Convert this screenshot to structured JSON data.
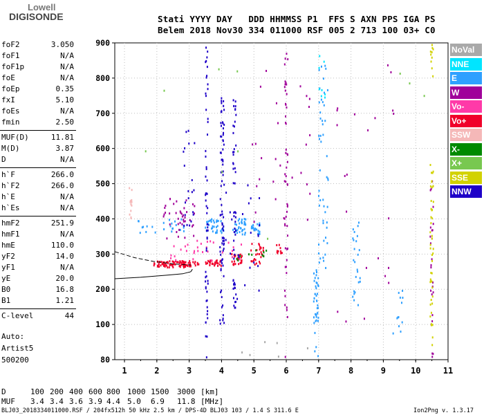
{
  "logo": {
    "line1": "Lowell",
    "line2": "DIGISONDE"
  },
  "header": {
    "line1": "Stati YYYY DAY   DDD HHMMSS P1  FFS S AXN PPS IGA PS",
    "line2": "Belem 2018 Nov30 334 011000 RSF 005 2 713 100 03+ C0"
  },
  "params": [
    {
      "name": "foF2",
      "value": "3.050"
    },
    {
      "name": "foF1",
      "value": "N/A"
    },
    {
      "name": "foF1p",
      "value": "N/A"
    },
    {
      "name": "foE",
      "value": "N/A"
    },
    {
      "name": "foEp",
      "value": "0.35"
    },
    {
      "name": "fxI",
      "value": "5.10"
    },
    {
      "name": "foEs",
      "value": "N/A"
    },
    {
      "name": "fmin",
      "value": "2.50"
    },
    {
      "name": "MUF(D)",
      "value": "11.81"
    },
    {
      "name": "M(D)",
      "value": "3.87"
    },
    {
      "name": "D",
      "value": "N/A"
    },
    {
      "name": "h`F",
      "value": "266.0"
    },
    {
      "name": "h`F2",
      "value": "266.0"
    },
    {
      "name": "h`E",
      "value": "N/A"
    },
    {
      "name": "h`Es",
      "value": "N/A"
    },
    {
      "name": "hmF2",
      "value": "251.9"
    },
    {
      "name": "hmF1",
      "value": "N/A"
    },
    {
      "name": "hmE",
      "value": "110.0"
    },
    {
      "name": "yF2",
      "value": "14.0"
    },
    {
      "name": "yF1",
      "value": "N/A"
    },
    {
      "name": "yE",
      "value": "20.0"
    },
    {
      "name": "B0",
      "value": "16.8"
    },
    {
      "name": "B1",
      "value": "1.21"
    },
    {
      "name": "C-level",
      "value": "44"
    }
  ],
  "auto": {
    "line1": "Auto:",
    "line2": "Artist5",
    "line3": "500200"
  },
  "legend": [
    {
      "label": "NoVal",
      "color": "#a9a9a9"
    },
    {
      "label": "NNE",
      "color": "#00e5ff"
    },
    {
      "label": "E",
      "color": "#2fa0ff"
    },
    {
      "label": "W",
      "color": "#a0009a"
    },
    {
      "label": "Vo-",
      "color": "#ff3aa8"
    },
    {
      "label": "Vo+",
      "color": "#f0002a"
    },
    {
      "label": "SSW",
      "color": "#f5b8b8"
    },
    {
      "label": "X-",
      "color": "#008a00"
    },
    {
      "label": "X+",
      "color": "#78c850"
    },
    {
      "label": "SSE",
      "color": "#d2d200"
    },
    {
      "label": "NNW",
      "color": "#1e00c8"
    }
  ],
  "muf_table": {
    "d_label": "D",
    "d_values": [
      "100",
      "200",
      "400",
      "600",
      "800",
      "1000",
      "1500",
      "3000"
    ],
    "d_unit": "[km]",
    "muf_label": "MUF",
    "muf_values": [
      "3.4",
      "3.4",
      "3.6",
      "3.9",
      "4.4",
      "5.0",
      "6.9",
      "11.8"
    ],
    "muf_unit": "[MHz]"
  },
  "footer": {
    "left": "BLJ03_2018334011000.RSF / 204fx512h 50 kHz 2.5 km / DPS-4D BLJ03 103 / 1.4 S 311.6 E",
    "right": "Ion2Png v. 1.3.17"
  },
  "chart_data": {
    "type": "scatter",
    "title": "",
    "xlabel": "",
    "ylabel": "",
    "xlim": [
      0.7,
      11
    ],
    "ylim": [
      80,
      900
    ],
    "x_ticks": [
      "1",
      "2",
      "3",
      "4",
      "5",
      "6",
      "7",
      "8",
      "9",
      "10",
      "11"
    ],
    "y_ticks": [
      "80",
      "100",
      "200",
      "300",
      "400",
      "500",
      "600",
      "700",
      "800",
      "900"
    ],
    "trace_solid": {
      "x": [
        0.7,
        1.5,
        2.3,
        2.8,
        3.05,
        3.1
      ],
      "y": [
        230,
        234,
        240,
        244,
        250,
        257
      ]
    },
    "trace_dashed": {
      "x": [
        0.7,
        1.3,
        1.9,
        2.5,
        3.05
      ],
      "y": [
        307,
        290,
        279,
        272,
        269
      ]
    },
    "clusters": [
      {
        "color": "#f0002a",
        "x": [
          1.9,
          3.3
        ],
        "y": [
          262,
          280
        ],
        "n": 90
      },
      {
        "color": "#f0002a",
        "x": [
          3.5,
          4.0
        ],
        "y": [
          266,
          282
        ],
        "n": 30
      },
      {
        "color": "#f0002a",
        "x": [
          4.3,
          4.7
        ],
        "y": [
          268,
          300
        ],
        "n": 26
      },
      {
        "color": "#f0002a",
        "x": [
          4.9,
          5.3
        ],
        "y": [
          270,
          330
        ],
        "n": 30
      },
      {
        "color": "#f0002a",
        "x": [
          5.7,
          5.9
        ],
        "y": [
          300,
          330
        ],
        "n": 10
      },
      {
        "color": "#ff3aa8",
        "x": [
          2.4,
          4.8
        ],
        "y": [
          280,
          340
        ],
        "n": 30
      },
      {
        "color": "#2fa0ff",
        "x": [
          1.2,
          2.9
        ],
        "y": [
          360,
          400
        ],
        "n": 25
      },
      {
        "color": "#2fa0ff",
        "x": [
          3.5,
          4.1
        ],
        "y": [
          360,
          400
        ],
        "n": 35
      },
      {
        "color": "#2fa0ff",
        "x": [
          4.35,
          4.75
        ],
        "y": [
          355,
          400
        ],
        "n": 35
      },
      {
        "color": "#2fa0ff",
        "x": [
          4.9,
          5.2
        ],
        "y": [
          355,
          390
        ],
        "n": 20
      },
      {
        "color": "#2fa0ff",
        "x": [
          6.85,
          7.0
        ],
        "y": [
          80,
          260
        ],
        "n": 40
      },
      {
        "color": "#2fa0ff",
        "x": [
          7.0,
          7.3
        ],
        "y": [
          260,
          900
        ],
        "n": 50
      },
      {
        "color": "#2fa0ff",
        "x": [
          8.05,
          8.3
        ],
        "y": [
          150,
          400
        ],
        "n": 25
      },
      {
        "color": "#2fa0ff",
        "x": [
          9.3,
          9.6
        ],
        "y": [
          90,
          200
        ],
        "n": 12
      },
      {
        "color": "#a0009a",
        "x": [
          2.2,
          3.2
        ],
        "y": [
          340,
          460
        ],
        "n": 40
      },
      {
        "color": "#a0009a",
        "x": [
          5.95,
          6.05
        ],
        "y": [
          80,
          900
        ],
        "n": 50
      },
      {
        "color": "#a0009a",
        "x": [
          4.9,
          6.8
        ],
        "y": [
          360,
          840
        ],
        "n": 30
      },
      {
        "color": "#a0009a",
        "x": [
          10.45,
          10.55
        ],
        "y": [
          80,
          520
        ],
        "n": 25
      },
      {
        "color": "#a0009a",
        "x": [
          7.5,
          9.5
        ],
        "y": [
          90,
          880
        ],
        "n": 22
      },
      {
        "color": "#1e00c8",
        "x": [
          3.5,
          3.58
        ],
        "y": [
          80,
          890
        ],
        "n": 60
      },
      {
        "color": "#1e00c8",
        "x": [
          3.95,
          4.08
        ],
        "y": [
          100,
          800
        ],
        "n": 80
      },
      {
        "color": "#1e00c8",
        "x": [
          4.35,
          4.45
        ],
        "y": [
          140,
          740
        ],
        "n": 50
      },
      {
        "color": "#1e00c8",
        "x": [
          2.8,
          3.2
        ],
        "y": [
          380,
          660
        ],
        "n": 20
      },
      {
        "color": "#1e00c8",
        "x": [
          4.1,
          5.2
        ],
        "y": [
          160,
          520
        ],
        "n": 25
      },
      {
        "color": "#d2d200",
        "x": [
          10.45,
          10.55
        ],
        "y": [
          80,
          560
        ],
        "n": 45
      },
      {
        "color": "#d2d200",
        "x": [
          10.45,
          10.55
        ],
        "y": [
          800,
          900
        ],
        "n": 10
      },
      {
        "color": "#008a00",
        "x": [
          4.3,
          5.5
        ],
        "y": [
          270,
          320
        ],
        "n": 10
      },
      {
        "color": "#78c850",
        "x": [
          1.5,
          10.5
        ],
        "y": [
          280,
          900
        ],
        "n": 10
      },
      {
        "color": "#f5b8b8",
        "x": [
          1.15,
          1.25
        ],
        "y": [
          400,
          500
        ],
        "n": 12
      },
      {
        "color": "#00e5ff",
        "x": [
          7.0,
          7.2
        ],
        "y": [
          700,
          900
        ],
        "n": 8
      },
      {
        "color": "#a9a9a9",
        "x": [
          4.0,
          7.0
        ],
        "y": [
          80,
          90
        ],
        "n": 6
      }
    ]
  }
}
